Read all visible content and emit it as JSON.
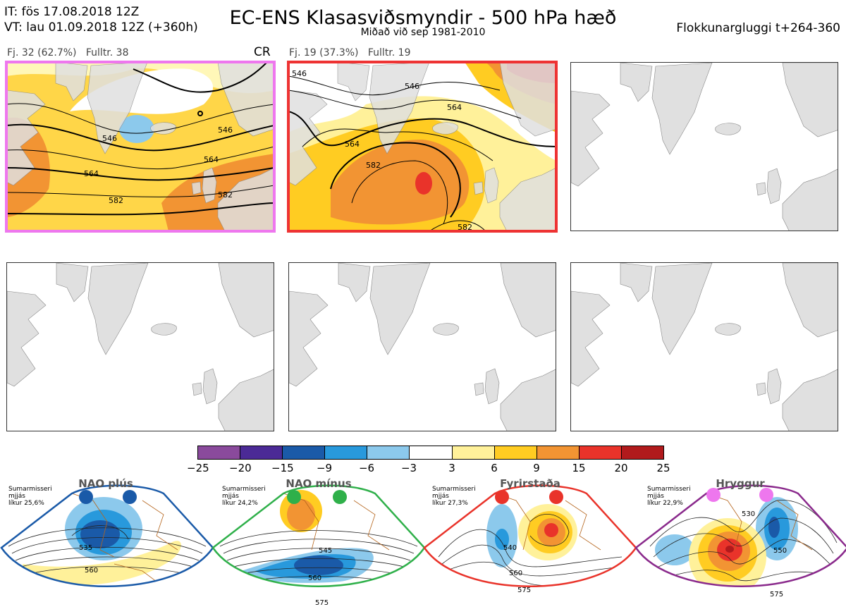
{
  "header": {
    "it_line": "IT: fös 17.08.2018 12Z",
    "vt_line": "VT: lau 01.09.2018 12Z  (+360h)",
    "title": "EC-ENS Klasasviðsmyndir - 500 hPa hæð",
    "subtitle": "Miðað við sep 1981-2010",
    "window": "Flokkunargluggi t+264-360"
  },
  "panels": [
    {
      "label": "Fj. 32 (62.7%)",
      "members": "Fulltr. 38",
      "tag": "CR",
      "frame_color": "#ee77ee",
      "contours": [
        "546",
        "546",
        "564",
        "564",
        "582",
        "582"
      ]
    },
    {
      "label": "Fj. 19 (37.3%)",
      "members": "Fulltr. 19",
      "frame_color": "#ee3333",
      "contours": [
        "546",
        "546",
        "564",
        "564",
        "582",
        "582"
      ]
    }
  ],
  "colorbar": {
    "colors": [
      "#8a4a9c",
      "#4b2a96",
      "#1a5aa8",
      "#2899dc",
      "#8cc9ec",
      "#ffffff",
      "#fff19a",
      "#ffcc22",
      "#f29433",
      "#e9332a",
      "#b11a1c"
    ],
    "ticks": [
      "−25",
      "−20",
      "−15",
      "−9",
      "−6",
      "−3",
      "3",
      "6",
      "9",
      "15",
      "20",
      "25"
    ]
  },
  "regimes": [
    {
      "name": "NAO plús",
      "note": [
        "Sumarmisseri",
        "mjjás",
        "líkur 25,6%"
      ],
      "color": "#1a5aa8",
      "labels": [
        "535",
        "560"
      ]
    },
    {
      "name": "NAO mínus",
      "note": [
        "Sumarmisseri",
        "mjjás",
        "líkur 24,2%"
      ],
      "color": "#2fb04a",
      "labels": [
        "545",
        "560",
        "575"
      ]
    },
    {
      "name": "Fyrirstaða",
      "note": [
        "Sumarmisseri",
        "mjjás",
        "líkur 27,3%"
      ],
      "color": "#e9332a",
      "labels": [
        "540",
        "560",
        "575"
      ]
    },
    {
      "name": "Hryggur",
      "note": [
        "Sumarmisseri",
        "mjjás",
        "líkur 22,9%"
      ],
      "color": "#ee77ee",
      "labels": [
        "530",
        "550",
        "575"
      ]
    }
  ]
}
